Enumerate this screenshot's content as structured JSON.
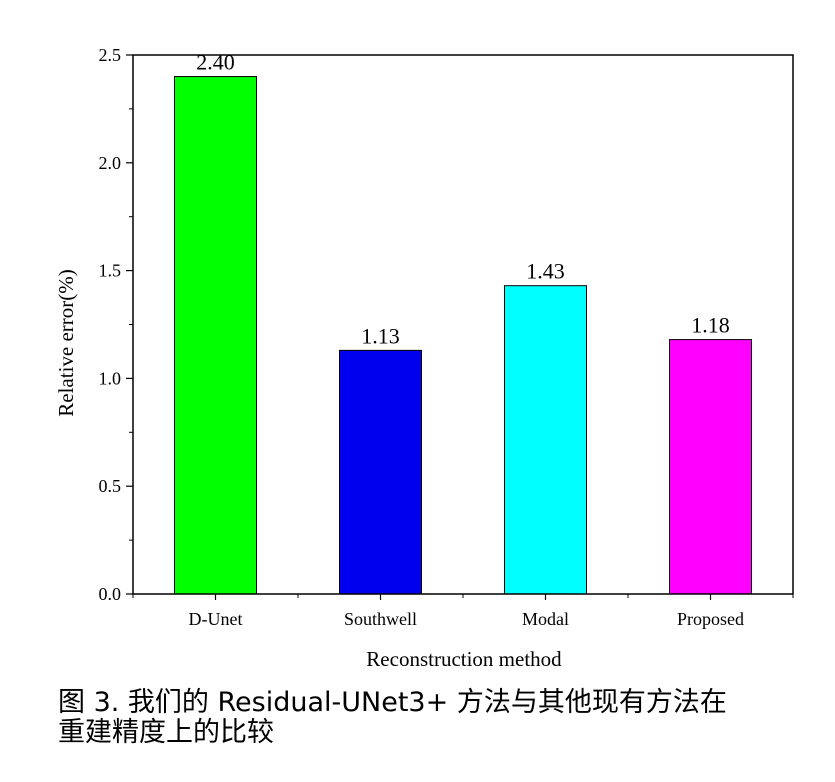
{
  "chart_data": {
    "type": "bar",
    "categories": [
      "D-Unet",
      "Southwell",
      "Modal",
      "Proposed"
    ],
    "values": [
      2.4,
      1.13,
      1.43,
      1.18
    ],
    "value_labels": [
      "2.40",
      "1.13",
      "1.43",
      "1.18"
    ],
    "colors": [
      "#00ff00",
      "#0000ee",
      "#00ffff",
      "#ff00ff"
    ],
    "xlabel": "Reconstruction method",
    "ylabel": "Relative error(%)",
    "ylim": [
      0,
      2.5
    ],
    "yticks": [
      0.0,
      0.5,
      1.0,
      1.5,
      2.0,
      2.5
    ],
    "ytick_labels": [
      "0.0",
      "0.5",
      "1.0",
      "1.5",
      "2.0",
      "2.5"
    ],
    "grid": false,
    "legend": "none"
  },
  "caption": {
    "line1": "图 3. 我们的 Residual-UNet3+ 方法与其他现有方法在",
    "line2": "重建精度上的比较"
  }
}
